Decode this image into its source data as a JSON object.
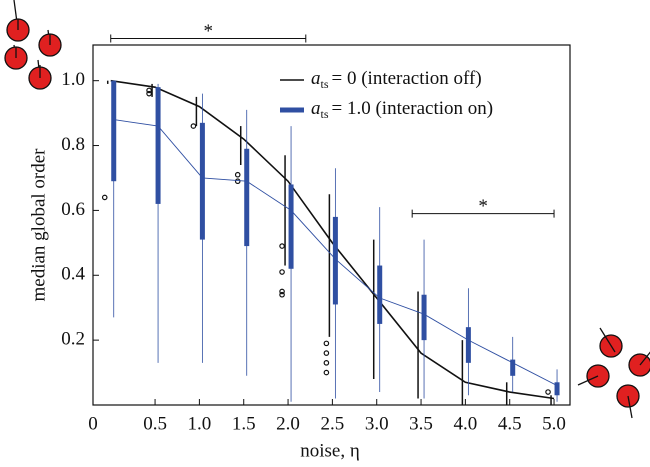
{
  "chart_data": {
    "type": "box",
    "x_label": "noise, η",
    "y_label": "median global order",
    "origin_label": "0",
    "x": [
      0,
      0.5,
      1.0,
      1.5,
      2.0,
      2.5,
      3.0,
      3.5,
      4.0,
      4.5,
      5.0
    ],
    "xlim": [
      -0.2,
      5.18
    ],
    "xticks": [
      0.5,
      {
        "value": 1,
        "label": "1.0"
      },
      1.5,
      {
        "value": 2,
        "label": "2.0"
      },
      2.5,
      {
        "value": 3,
        "label": "3.0"
      },
      3.5,
      {
        "value": 4,
        "label": "4.0"
      },
      4.5,
      {
        "value": 5,
        "label": "5.0"
      }
    ],
    "ylim": [
      0,
      1.11
    ],
    "yticks": [
      0.2,
      0.4,
      0.6,
      0.8,
      {
        "value": 1,
        "label": "1.0"
      }
    ],
    "legend": [
      {
        "symbol": "a",
        "sub": "ts",
        "text": "= 0 (interaction off)"
      },
      {
        "symbol": "a",
        "sub": "ts",
        "text": "= 1.0 (interaction on)"
      }
    ],
    "series": [
      {
        "color": "#111111",
        "median": [
          1.0,
          0.98,
          0.92,
          0.82,
          0.69,
          0.5,
          0.33,
          0.16,
          0.07,
          0.04,
          0.02
        ],
        "whisker_low": [
          0.99,
          0.95,
          0.86,
          0.74,
          0.43,
          0.21,
          0.08,
          0.02,
          0.0,
          0.0,
          0.0
        ],
        "whisker_high": [
          1.0,
          0.99,
          0.95,
          0.86,
          0.77,
          0.65,
          0.51,
          0.35,
          0.2,
          0.07,
          0.03
        ],
        "outliers": [
          [
            0.64
          ],
          [
            0.96,
            0.97
          ],
          [
            0.86
          ],
          [
            0.71,
            0.69
          ],
          [
            0.49,
            0.41,
            0.35,
            0.34
          ],
          [
            0.19,
            0.16,
            0.13,
            0.1
          ],
          [],
          [],
          [],
          [],
          [
            0.04
          ]
        ]
      },
      {
        "color": "#2f4fa2",
        "median": [
          0.88,
          0.86,
          0.7,
          0.69,
          0.6,
          0.45,
          0.33,
          0.28,
          0.2,
          0.13,
          0.06
        ],
        "q1": [
          0.69,
          0.62,
          0.51,
          0.49,
          0.42,
          0.31,
          0.25,
          0.2,
          0.13,
          0.09,
          0.03
        ],
        "q3": [
          1.0,
          0.98,
          0.87,
          0.79,
          0.68,
          0.58,
          0.43,
          0.34,
          0.24,
          0.14,
          0.07
        ],
        "whisker_low": [
          0.27,
          0.13,
          0.13,
          0.09,
          0.01,
          0.02,
          0.04,
          0.02,
          0.03,
          0.04,
          0.01
        ],
        "whisker_high": [
          1.0,
          0.99,
          0.96,
          0.91,
          0.86,
          0.73,
          0.61,
          0.51,
          0.36,
          0.21,
          0.11
        ]
      }
    ],
    "annotations": [
      {
        "text": "*",
        "x_start": 0,
        "x_end": 2.2,
        "y": 1.13
      },
      {
        "text": "*",
        "x_start": 3.4,
        "x_end": 5.0,
        "y": 0.59
      }
    ]
  }
}
